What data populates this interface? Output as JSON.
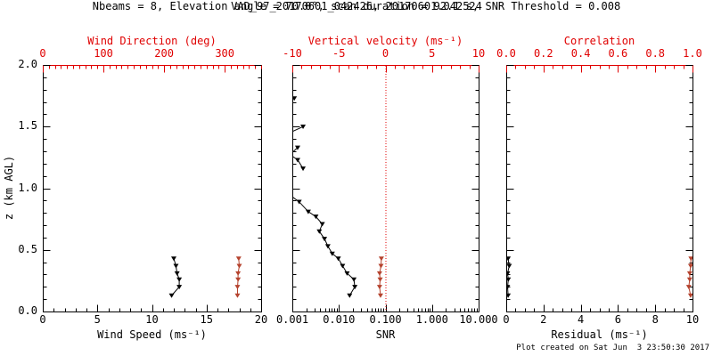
{
  "title": "VAD_97_20170601_042426, 20170601.042524",
  "subtitle": "Nbeams = 8, Elevation angle = 70.0°, scan duration = 92.1 s, SNR Threshold = 0.008",
  "footer": "Plot created on Sat Jun  3 23:50:30 2017",
  "colors": {
    "axis_red": "#e00000",
    "series_red": "#b5432e",
    "series_black": "#000000",
    "background": "#ffffff"
  },
  "chart_data": {
    "type": "line",
    "ylabel": "z (km AGL)",
    "y_axis": {
      "range": [
        0.0,
        2.0
      ],
      "major_ticks": [
        0.0,
        0.5,
        1.0,
        1.5,
        2.0
      ],
      "tick_labels": [
        "0.0",
        "0.5",
        "1.0",
        "1.5",
        "2.0"
      ],
      "minor_step": 0.1
    },
    "panels": [
      {
        "id": "wind",
        "top_axis": {
          "label": "Wind Direction (deg)",
          "range": [
            0,
            360
          ],
          "scale": "linear",
          "major_ticks": [
            0,
            100,
            200,
            300
          ],
          "tick_labels": [
            "0",
            "100",
            "200",
            "300"
          ],
          "minor_step": 10
        },
        "bottom_axis": {
          "label": "Wind Speed (ms⁻¹)",
          "range": [
            0,
            20
          ],
          "scale": "linear",
          "major_ticks": [
            0,
            5,
            10,
            15,
            20
          ],
          "tick_labels": [
            "0",
            "5",
            "10",
            "15",
            "20"
          ],
          "minor_step": 1
        },
        "series": [
          {
            "name": "wind-speed",
            "axis": "bottom",
            "color": "black",
            "points": [
              [
                11.8,
                0.13
              ],
              [
                12.5,
                0.2
              ],
              [
                12.5,
                0.26
              ],
              [
                12.3,
                0.31
              ],
              [
                12.2,
                0.37
              ],
              [
                12.0,
                0.43
              ]
            ]
          },
          {
            "name": "wind-direction",
            "axis": "top",
            "color": "red",
            "points": [
              [
                321,
                0.13
              ],
              [
                321,
                0.2
              ],
              [
                322,
                0.26
              ],
              [
                322,
                0.31
              ],
              [
                324,
                0.37
              ],
              [
                323,
                0.43
              ]
            ]
          }
        ]
      },
      {
        "id": "snr",
        "top_axis": {
          "label": "Vertical velocity (ms⁻¹)",
          "range": [
            -10,
            10
          ],
          "scale": "linear",
          "major_ticks": [
            -10,
            -5,
            0,
            5,
            10
          ],
          "tick_labels": [
            "-10",
            "-5",
            "0",
            "5",
            "10"
          ],
          "minor_step": 1,
          "zero_line": true
        },
        "bottom_axis": {
          "label": "SNR",
          "range": [
            0.001,
            10
          ],
          "scale": "log",
          "major_ticks": [
            0.001,
            0.01,
            0.1,
            1,
            10
          ],
          "tick_labels": [
            "0.001",
            "0.010",
            "0.100",
            "1.000",
            "10.000"
          ]
        },
        "series": [
          {
            "name": "snr-profile",
            "axis": "bottom",
            "color": "black",
            "segments": [
              [
                [
                  0.0011,
                  1.73
                ]
              ],
              [
                [
                  0.001,
                  1.46,
                  0
                ],
                [
                  0.0017,
                  1.5
                ]
              ],
              [
                [
                  0.0013,
                  1.33
                ],
                [
                  0.001,
                  1.29,
                  0
                ]
              ],
              [
                [
                  0.001,
                  1.26,
                  0
                ],
                [
                  0.0013,
                  1.23
                ],
                [
                  0.0017,
                  1.16
                ]
              ],
              [
                [
                  0.001,
                  0.93,
                  0
                ],
                [
                  0.0014,
                  0.89
                ],
                [
                  0.0022,
                  0.81
                ],
                [
                  0.0032,
                  0.77
                ],
                [
                  0.0044,
                  0.71
                ],
                [
                  0.0038,
                  0.65
                ],
                [
                  0.0049,
                  0.59
                ],
                [
                  0.0058,
                  0.53
                ],
                [
                  0.0072,
                  0.47
                ],
                [
                  0.0097,
                  0.43
                ],
                [
                  0.012,
                  0.37
                ],
                [
                  0.015,
                  0.31
                ],
                [
                  0.021,
                  0.26
                ],
                [
                  0.022,
                  0.2
                ],
                [
                  0.017,
                  0.13
                ]
              ]
            ]
          },
          {
            "name": "vertical-velocity",
            "axis": "top",
            "color": "red",
            "points": [
              [
                -0.53,
                0.13
              ],
              [
                -0.63,
                0.2
              ],
              [
                -0.57,
                0.26
              ],
              [
                -0.63,
                0.31
              ],
              [
                -0.48,
                0.37
              ],
              [
                -0.44,
                0.43
              ]
            ]
          }
        ]
      },
      {
        "id": "residual",
        "top_axis": {
          "label": "Correlation",
          "range": [
            0,
            1
          ],
          "scale": "linear",
          "major_ticks": [
            0,
            0.2,
            0.4,
            0.6,
            0.8,
            1.0
          ],
          "tick_labels": [
            "0.0",
            "0.2",
            "0.4",
            "0.6",
            "0.8",
            "1.0"
          ],
          "minor_step": 0.05
        },
        "bottom_axis": {
          "label": "Residual (ms⁻¹)",
          "range": [
            0,
            10
          ],
          "scale": "linear",
          "major_ticks": [
            0,
            2,
            4,
            6,
            8,
            10
          ],
          "tick_labels": [
            "0",
            "2",
            "4",
            "6",
            "8",
            "10"
          ],
          "minor_step": 0.5
        },
        "series": [
          {
            "name": "residual",
            "axis": "bottom",
            "color": "black",
            "points": [
              [
                0.1,
                0.13
              ],
              [
                0.07,
                0.2
              ],
              [
                0.11,
                0.26
              ],
              [
                0.07,
                0.31
              ],
              [
                0.16,
                0.37
              ],
              [
                0.1,
                0.43
              ]
            ]
          },
          {
            "name": "correlation",
            "axis": "top",
            "color": "red",
            "points": [
              [
                0.99,
                0.13
              ],
              [
                0.98,
                0.2
              ],
              [
                0.985,
                0.26
              ],
              [
                0.985,
                0.31
              ],
              [
                0.99,
                0.37
              ],
              [
                0.992,
                0.43
              ]
            ]
          }
        ]
      }
    ]
  }
}
